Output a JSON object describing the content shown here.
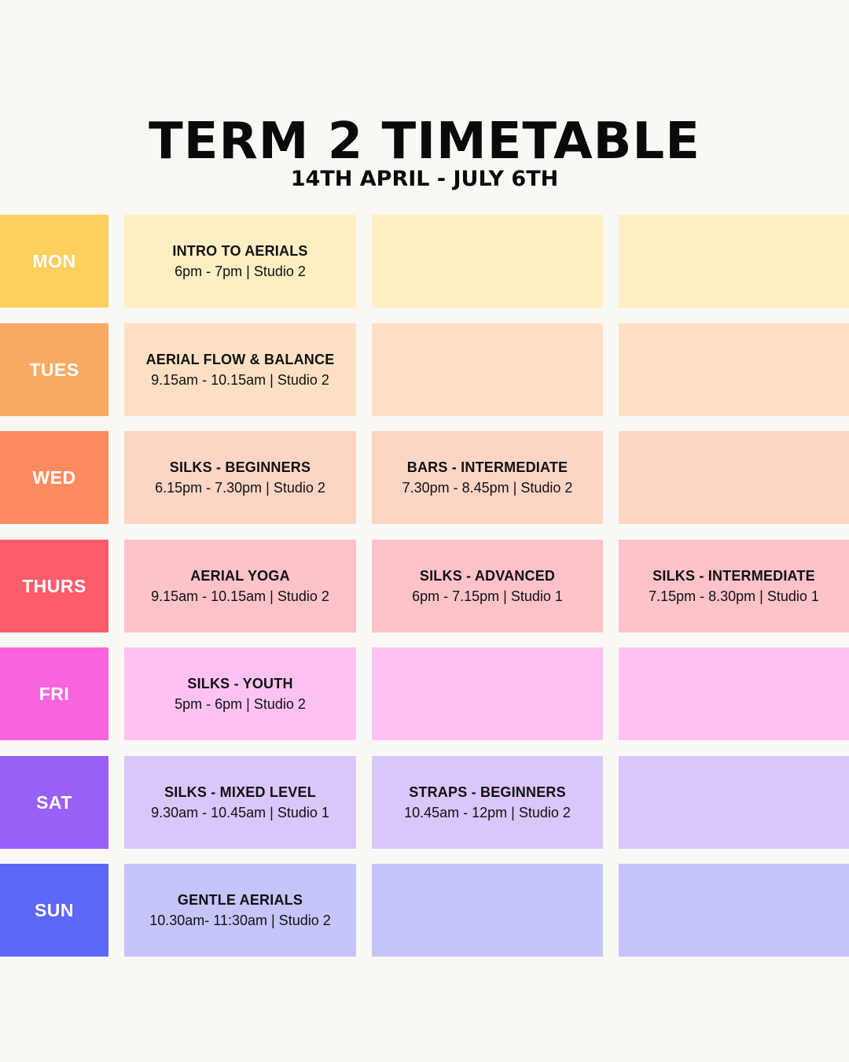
{
  "header": {
    "title": "TERM 2 TIMETABLE",
    "subtitle": "14TH APRIL - JULY 6TH"
  },
  "days": [
    {
      "label": "MON",
      "accent_color": "#fdcf5e",
      "cell_color": "#feeec3",
      "classes": [
        {
          "name": "INTRO TO AERIALS",
          "details": "6pm - 7pm | Studio 2"
        },
        null,
        null
      ]
    },
    {
      "label": "TUES",
      "accent_color": "#f9aa63",
      "cell_color": "#fde0c3",
      "classes": [
        {
          "name": "AERIAL FLOW & BALANCE",
          "details": "9.15am - 10.15am | Studio 2"
        },
        null,
        null
      ]
    },
    {
      "label": "WED",
      "accent_color": "#fd8b60",
      "cell_color": "#fdd5c4",
      "classes": [
        {
          "name": "SILKS - BEGINNERS",
          "details": "6.15pm - 7.30pm | Studio 2"
        },
        {
          "name": "BARS - INTERMEDIATE",
          "details": "7.30pm - 8.45pm | Studio 2"
        },
        null
      ]
    },
    {
      "label": "THURS",
      "accent_color": "#fd5c6a",
      "cell_color": "#fdc3c9",
      "classes": [
        {
          "name": "AERIAL YOGA",
          "details": "9.15am - 10.15am | Studio 2"
        },
        {
          "name": "SILKS - ADVANCED",
          "details": "6pm - 7.15pm | Studio 1"
        },
        {
          "name": "SILKS - INTERMEDIATE",
          "details": "7.15pm - 8.30pm | Studio 1"
        }
      ]
    },
    {
      "label": "FRI",
      "accent_color": "#fb63dc",
      "cell_color": "#fdc2f1",
      "classes": [
        {
          "name": "SILKS - YOUTH",
          "details": "5pm - 6pm | Studio 2"
        },
        null,
        null
      ]
    },
    {
      "label": "SAT",
      "accent_color": "#9960f7",
      "cell_color": "#d9c6fb",
      "classes": [
        {
          "name": "SILKS - MIXED LEVEL",
          "details": "9.30am - 10.45am | Studio 1"
        },
        {
          "name": "STRAPS - BEGINNERS",
          "details": "10.45am - 12pm | Studio 2"
        },
        null
      ]
    },
    {
      "label": "SUN",
      "accent_color": "#5d67f8",
      "cell_color": "#c4c5fc",
      "classes": [
        {
          "name": "GENTLE AERIALS",
          "details": "10.30am- 11:30am | Studio 2"
        },
        null,
        null
      ]
    }
  ]
}
